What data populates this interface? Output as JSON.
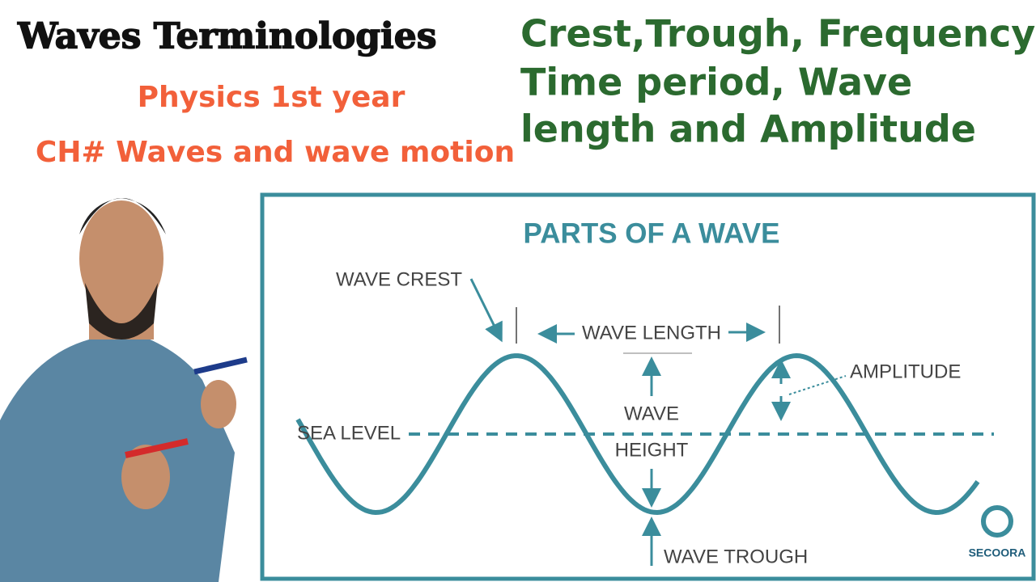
{
  "header": {
    "title": "Waves Terminologies",
    "subtitle": [
      "Physics 1st year",
      "CH# Waves and wave motion"
    ]
  },
  "topics": [
    "Crest,Trough, Frequency",
    "Time period, Wave",
    "length and Amplitude"
  ],
  "diagram": {
    "title": "PARTS OF A WAVE",
    "labels": {
      "crest": "WAVE CREST",
      "wave_length": "WAVE LENGTH",
      "amplitude": "AMPLITUDE",
      "sea_level": "SEA LEVEL",
      "wave_height": [
        "WAVE",
        "HEIGHT"
      ],
      "trough": "WAVE TROUGH"
    },
    "logo": "SECOORA"
  }
}
